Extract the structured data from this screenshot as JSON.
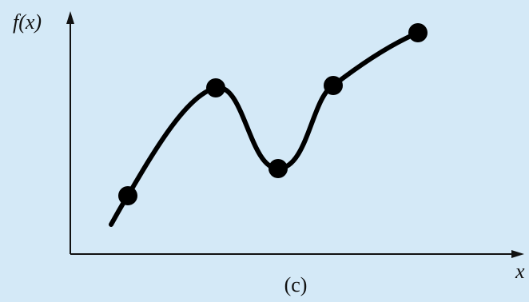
{
  "axes": {
    "y_label": "f(x)",
    "x_label": "x"
  },
  "caption": "(c)"
}
